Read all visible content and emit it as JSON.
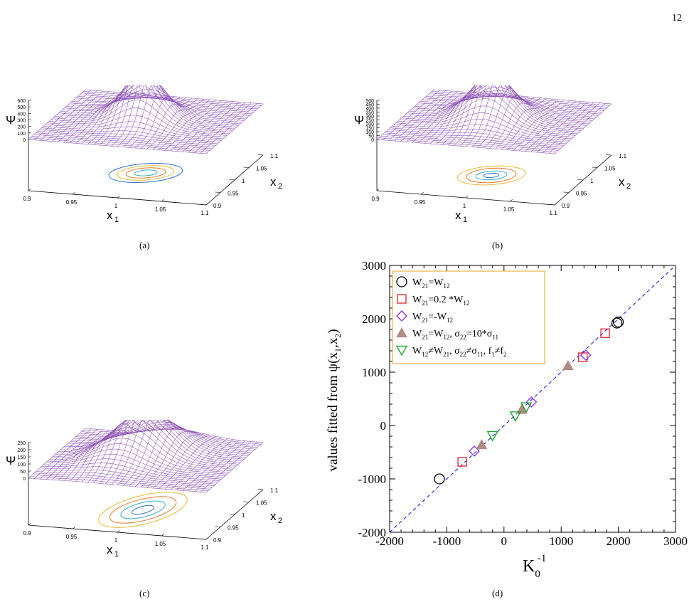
{
  "page_number": "12",
  "captions": [
    "(a)",
    "(b)",
    "(c)",
    "(d)"
  ],
  "surface_colors": {
    "mesh": "#8b4fb5",
    "contour_outer": "#e8b830",
    "contour_mid": "#e07a28",
    "contour_inner": "#30b0c0",
    "contour_blue": "#2a6fd0"
  },
  "panels": [
    {
      "id": "a",
      "zlabel": "Ψ",
      "xlabel": "x",
      "xsub": "1",
      "ylabel": "x",
      "ysub": "2",
      "zticks": [
        "600",
        "500",
        "400",
        "300",
        "200",
        "100",
        "0"
      ],
      "xticks": [
        "0.9",
        "0.95",
        "1",
        "1.05",
        "1.1"
      ],
      "yticks": [
        "1.1",
        "1.05",
        "1",
        "0.95",
        "0.9"
      ]
    },
    {
      "id": "b",
      "zlabel": "Ψ",
      "xlabel": "x",
      "xsub": "1",
      "ylabel": "x",
      "ysub": "2",
      "zticks": [
        "500",
        "450",
        "400",
        "350",
        "300",
        "250",
        "200",
        "150",
        "100",
        "50",
        "0"
      ],
      "xticks": [
        "0.9",
        "0.95",
        "1",
        "1.05",
        "1.1"
      ],
      "yticks": [
        "1.1",
        "1.05",
        "1",
        "0.95",
        "0.9"
      ]
    },
    {
      "id": "c",
      "zlabel": "Ψ",
      "xlabel": "x",
      "xsub": "1",
      "ylabel": "x",
      "ysub": "2",
      "zticks": [
        "250",
        "200",
        "150",
        "100",
        "50",
        "0"
      ],
      "xticks": [
        "0.9",
        "0.95",
        "1",
        "1.05",
        "1.1"
      ],
      "yticks": [
        "1.1",
        "1.05",
        "1",
        "0.95",
        "0.9"
      ]
    }
  ],
  "chart_data": {
    "type": "scatter",
    "xlim": [
      -2000,
      3000
    ],
    "ylim": [
      -2000,
      3000
    ],
    "xticks": [
      -2000,
      -1000,
      0,
      1000,
      2000,
      3000
    ],
    "yticks": [
      -2000,
      -1000,
      0,
      1000,
      2000,
      3000
    ],
    "xlabel": "K",
    "xlabel_sub": "0",
    "xlabel_sup": "-1",
    "ylabel": "values fitted from ψ(x1,x2)",
    "ylabel_parts": {
      "pre": "values fitted from ψ(x",
      "s1": "1",
      "mid": ",x",
      "s2": "2",
      "post": ")"
    },
    "legend_position": "top-left",
    "reference_line": {
      "from": [
        -2000,
        -2000
      ],
      "to": [
        3000,
        3000
      ],
      "color": "#2233cc"
    },
    "series": [
      {
        "name": "W21=W12",
        "label_parts": [
          "W",
          "21",
          "=W",
          "12",
          ""
        ],
        "marker": "circle",
        "color": "#000000",
        "points": [
          [
            -1130,
            -1000
          ],
          [
            1975,
            1920
          ],
          [
            2000,
            1940
          ]
        ]
      },
      {
        "name": "W21=0.2 *W12",
        "label_parts": [
          "W",
          "21",
          "=0.2 *W",
          "12",
          ""
        ],
        "marker": "square",
        "color": "#e0202a",
        "points": [
          [
            -730,
            -680
          ],
          [
            1380,
            1280
          ],
          [
            1770,
            1730
          ]
        ]
      },
      {
        "name": "W21=-W12",
        "label_parts": [
          "W",
          "21",
          "=-W",
          "12",
          ""
        ],
        "marker": "diamond",
        "color": "#8a2be2",
        "points": [
          [
            -520,
            -480
          ],
          [
            480,
            440
          ],
          [
            1430,
            1320
          ]
        ]
      },
      {
        "name": "W21=W12, σ22=10*σ11",
        "label_parts": [
          "W",
          "21",
          "=W",
          "12",
          ", σ",
          "22",
          "=10*σ",
          "11",
          ""
        ],
        "marker": "triangle-up",
        "color": "#b08c84",
        "points": [
          [
            -390,
            -360
          ],
          [
            310,
            300
          ],
          [
            1120,
            1120
          ]
        ]
      },
      {
        "name": "W12≠W21, σ22≠σ11, f1≠f2",
        "label_parts": [
          "W",
          "12",
          "≠W",
          "21",
          ", σ",
          "22",
          "≠σ",
          "11",
          ", f",
          "1",
          "≠f",
          "2",
          ""
        ],
        "marker": "triangle-down",
        "color": "#16a020",
        "points": [
          [
            -200,
            -190
          ],
          [
            200,
            180
          ],
          [
            390,
            350
          ]
        ]
      }
    ]
  }
}
